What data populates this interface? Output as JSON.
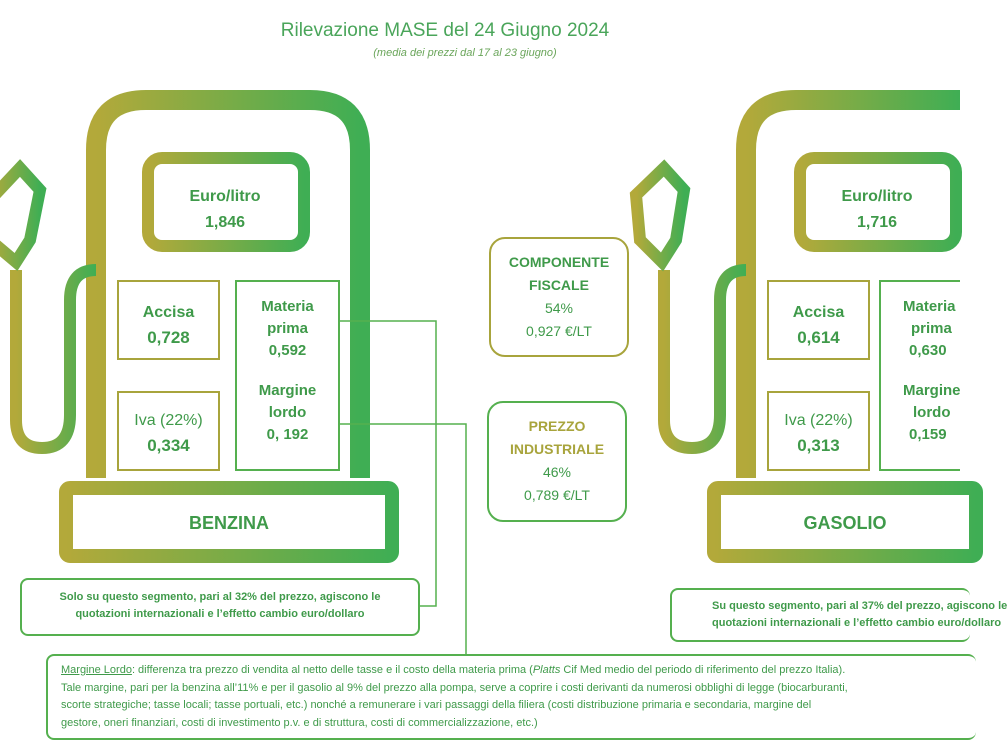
{
  "header": {
    "title": "Rilevazione MASE del 24 Giugno 2024",
    "subtitle": "(media dei prezzi dal 17 al 23 giugno)"
  },
  "benzina": {
    "label": "BENZINA",
    "unit": "Euro/litro",
    "price": "1,846",
    "accisa_label": "Accisa",
    "accisa_value": "0,728",
    "iva_label": "Iva (22%)",
    "iva_value": "0,334",
    "materia_label_1": "Materia",
    "materia_label_2": "prima",
    "materia_value": "0,592",
    "margine_label_1": "Margine",
    "margine_label_2": "lordo",
    "margine_value": "0, 192"
  },
  "gasolio": {
    "label": "GASOLIO",
    "unit": "Euro/litro",
    "price": "1,716",
    "accisa_label": "Accisa",
    "accisa_value": "0,614",
    "iva_label": "Iva (22%)",
    "iva_value": "0,313",
    "materia_label_1": "Materia",
    "materia_label_2": "prima",
    "materia_value": "0,630",
    "margine_label_1": "Margine",
    "margine_label_2": "lordo",
    "margine_value": "0,159"
  },
  "componente_fiscale": {
    "line1": "COMPONENTE",
    "line2": "FISCALE",
    "percent": "54%",
    "value": "0,927 €/LT"
  },
  "prezzo_industriale": {
    "line1": "PREZZO",
    "line2": "INDUSTRIALE",
    "percent": "46%",
    "value": "0,789 €/LT"
  },
  "notes": {
    "benzina_segment_1": "Solo su questo segmento, pari al 32% del prezzo, agiscono le",
    "benzina_segment_2": "quotazioni internazionali e l’effetto cambio euro/dollaro",
    "gasolio_segment_1": "Su questo segmento, pari al 37% del prezzo, agiscono le",
    "gasolio_segment_2": "quotazioni internazionali e l’effetto cambio euro/dollaro",
    "margine_term": "Margine Lordo",
    "margine_line1a": ": differenza tra prezzo di vendita al netto delle tasse e il costo della materia prima (",
    "margine_platts": "Platts",
    "margine_line1b": " Cif Med medio del periodo di riferimento del prezzo Italia).",
    "margine_line2": "Tale margine, pari per la benzina all’11% e per il gasolio al 9% del prezzo alla pompa, serve a coprire i costi derivanti da numerosi obblighi di legge (biocarburanti,",
    "margine_line3": "scorte strategiche; tasse locali; tasse portuali, etc.) nonché a remunerare i vari passaggi della filiera (costi distribuzione primaria e secondaria, margine del",
    "margine_line4": "gestore, oneri finanziari, costi di investimento p.v. e di struttura, costi di commercializzazione, etc.)"
  },
  "colors": {
    "olive": "#a8a43c",
    "green": "#55b04f",
    "text_green": "#3f9a4a"
  }
}
